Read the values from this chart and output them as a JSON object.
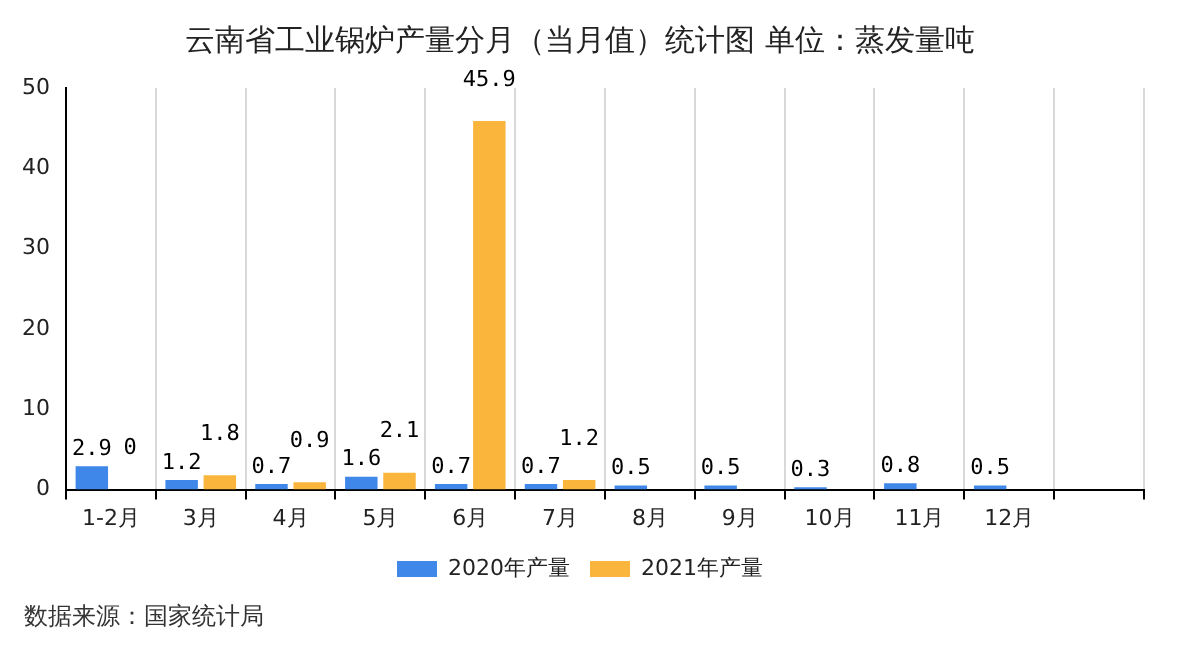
{
  "chart_data": {
    "type": "bar",
    "title": "云南省工业锅炉产量分月（当月值）统计图 单位：蒸发量吨",
    "categories": [
      "1-2月",
      "3月",
      "4月",
      "5月",
      "6月",
      "7月",
      "8月",
      "9月",
      "10月",
      "11月",
      "12月",
      null
    ],
    "series": [
      {
        "name": "2020年产量",
        "color": "#3f87e8",
        "values": [
          2.9,
          1.2,
          0.7,
          1.6,
          0.7,
          0.7,
          0.5,
          0.5,
          0.3,
          0.8,
          0.5,
          null
        ],
        "value_labels": [
          "2.9",
          "1.2",
          "0.7",
          "1.6",
          "0.7",
          "0.7",
          "0.5",
          "0.5",
          "0.3",
          "0.8",
          "0.5",
          null
        ]
      },
      {
        "name": "2021年产量",
        "color": "#f9b53c",
        "values": [
          0,
          1.8,
          0.9,
          2.1,
          45.9,
          1.2,
          null,
          null,
          null,
          null,
          null,
          null
        ],
        "value_labels": [
          "0",
          "1.8",
          "0.9",
          "2.1",
          "45.9",
          "1.2",
          null,
          null,
          null,
          null,
          null,
          null
        ]
      }
    ],
    "ylim": [
      0,
      50
    ],
    "yticks": [
      0,
      10,
      20,
      30,
      40,
      50
    ],
    "grid": "x",
    "legend": "bottom",
    "annotations": [
      "数据来源：国家统计局"
    ]
  }
}
